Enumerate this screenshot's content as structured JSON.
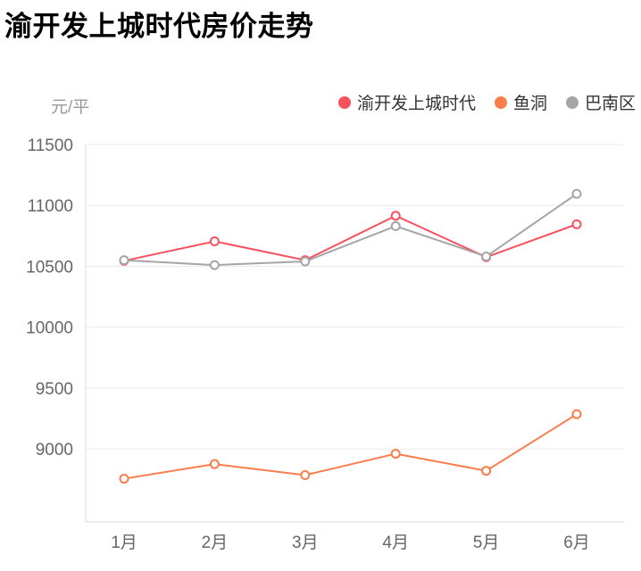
{
  "page": {
    "title": "渝开发上城时代房价走势"
  },
  "chart_data": {
    "type": "line",
    "title": "渝开发上城时代房价走势",
    "unit_label": "元/平",
    "categories": [
      "1月",
      "2月",
      "3月",
      "4月",
      "5月",
      "6月"
    ],
    "series": [
      {
        "id": "community",
        "name": "渝开发上城时代",
        "color": "#f7515f",
        "values": [
          10545,
          10705,
          10550,
          10915,
          10575,
          10845
        ]
      },
      {
        "id": "yudong",
        "name": "鱼洞",
        "color": "#f97d4c",
        "values": [
          8755,
          8875,
          8785,
          8960,
          8820,
          9285
        ]
      },
      {
        "id": "banan-district",
        "name": "巴南区",
        "color": "#a5a5a5",
        "values": [
          10550,
          10510,
          10540,
          10830,
          10580,
          11095
        ]
      }
    ],
    "yticks": [
      11500,
      11000,
      10500,
      10000,
      9500,
      9000
    ],
    "ylim": [
      8400,
      11500
    ],
    "grid": true,
    "legend_position": "top-right",
    "marker": "hollow-circle"
  },
  "ui_colors": {
    "background": "#ffffff",
    "title_text": "#000000",
    "legend_text": "#333333",
    "axis_text": "#666666",
    "unit_text": "#999999",
    "gridline": "#e9e9e9",
    "axis_line": "#d9d9d9",
    "marker_fill": "#ffffff"
  }
}
